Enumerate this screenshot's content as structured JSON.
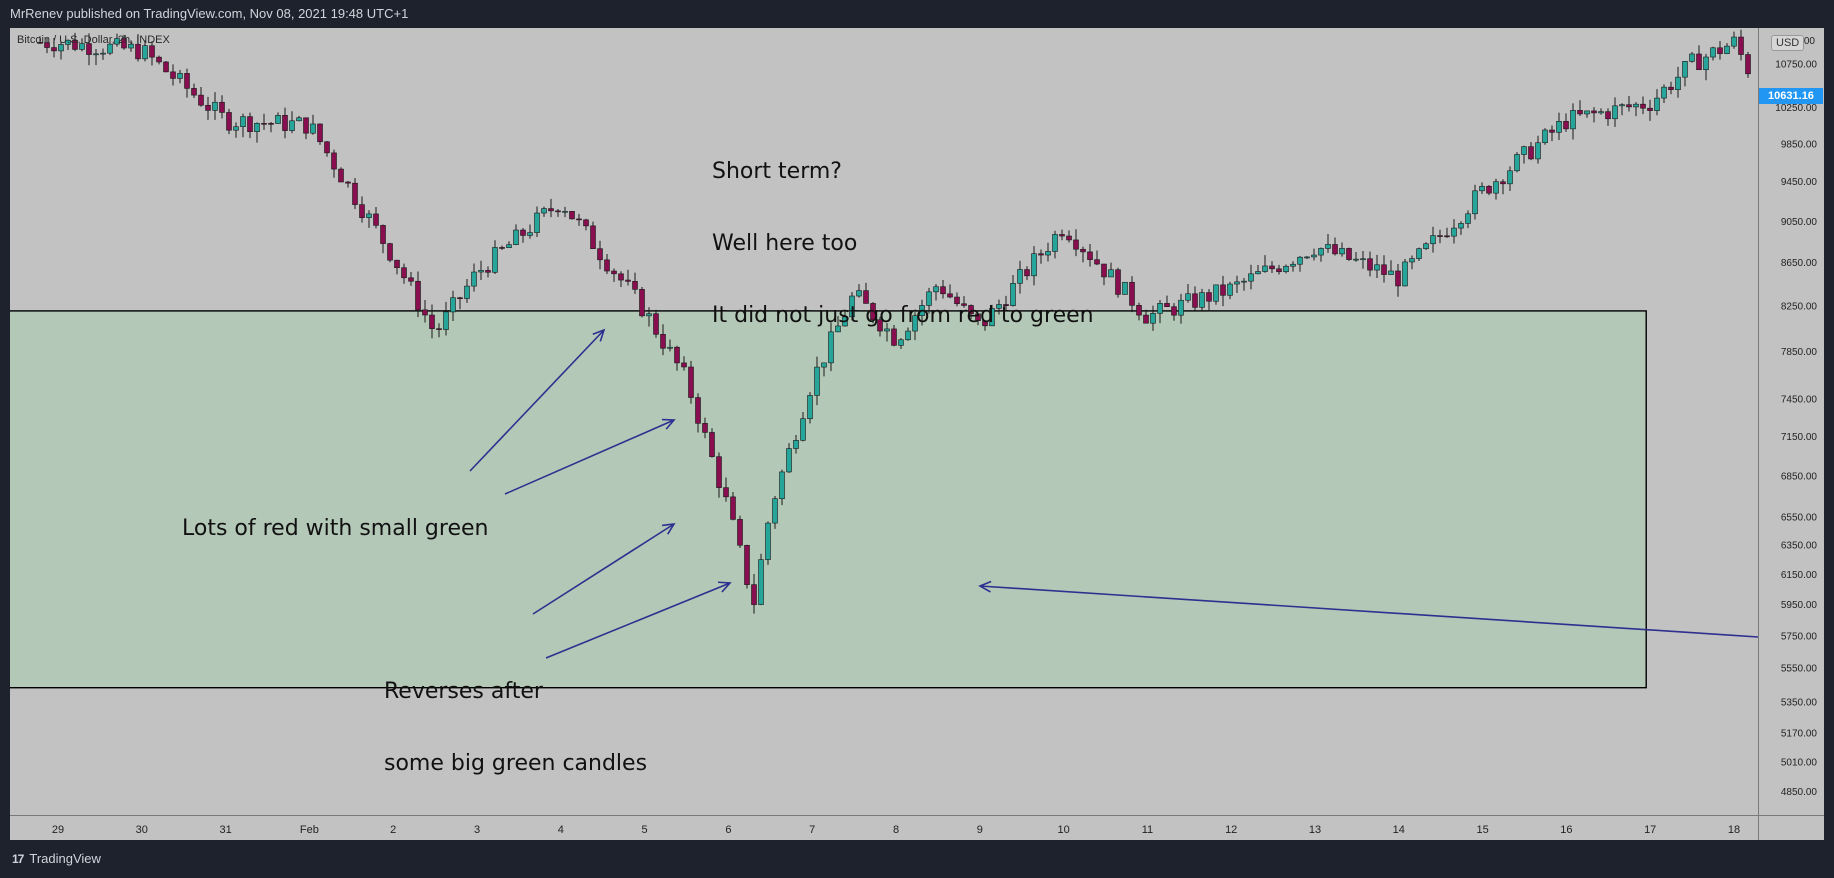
{
  "header": {
    "publish_line": "MrRenev published on TradingView.com, Nov 08, 2021 19:48 UTC+1"
  },
  "footer": {
    "brand": "TradingView",
    "logo_mark": "17"
  },
  "chart_data": {
    "type": "candlestick",
    "series_label": "Bitcoin / U.S. Dollar, 2h, INDEX",
    "currency_button": "USD",
    "last_price_label": "10631.16",
    "y_axis": {
      "scale": "log",
      "ylim": [
        4750,
        11150
      ],
      "tick_labels": [
        "10750.00",
        "10250.00",
        "9850.00",
        "9450.00",
        "9050.00",
        "8650.00",
        "8250.00",
        "7850.00",
        "7450.00",
        "7150.00",
        "6850.00",
        "6550.00",
        "6350.00",
        "6150.00",
        "5950.00",
        "5750.00",
        "5550.00",
        "5350.00",
        "5170.00",
        "5010.00",
        "4850.00"
      ],
      "top_partial_label": "11150.00"
    },
    "x_axis": {
      "tick_labels": [
        "29",
        "30",
        "31",
        "Feb",
        "2",
        "3",
        "4",
        "5",
        "6",
        "7",
        "8",
        "9",
        "10",
        "11",
        "12",
        "13",
        "14",
        "15",
        "16",
        "17",
        "18"
      ]
    },
    "candles_approx": {
      "description_points": [
        {
          "t": "29",
          "price": 11000
        },
        {
          "t": "30",
          "price": 10900
        },
        {
          "t": "31",
          "price": 10100
        },
        {
          "t": "Feb",
          "price": 10050
        },
        {
          "t": "2",
          "price": 8700
        },
        {
          "t": "2.5",
          "price": 8000
        },
        {
          "t": "3",
          "price": 8550
        },
        {
          "t": "4",
          "price": 9250
        },
        {
          "t": "5",
          "price": 8200
        },
        {
          "t": "5.5",
          "price": 7600
        },
        {
          "t": "6",
          "price": 6600
        },
        {
          "t": "6.3",
          "price": 5950
        },
        {
          "t": "6.5",
          "price": 6600
        },
        {
          "t": "7",
          "price": 7600
        },
        {
          "t": "7.5",
          "price": 8350
        },
        {
          "t": "8",
          "price": 7950
        },
        {
          "t": "8.5",
          "price": 8450
        },
        {
          "t": "9",
          "price": 8050
        },
        {
          "t": "10",
          "price": 9000
        },
        {
          "t": "11",
          "price": 8150
        },
        {
          "t": "12",
          "price": 8400
        },
        {
          "t": "13",
          "price": 8800
        },
        {
          "t": "14",
          "price": 8500
        },
        {
          "t": "15",
          "price": 9350
        },
        {
          "t": "16",
          "price": 10100
        },
        {
          "t": "17",
          "price": 10300
        },
        {
          "t": "17.5",
          "price": 10750
        },
        {
          "t": "18",
          "price": 11000
        },
        {
          "t": "18.2",
          "price": 10631.16
        }
      ]
    },
    "zone": {
      "price_top": 8200,
      "price_bottom": 5430,
      "t_end": "17"
    },
    "annotations": [
      {
        "lines": [
          "Short term?",
          "Well here too",
          "It did not just go from red to green"
        ]
      },
      {
        "lines": [
          "Lots of red with small green"
        ]
      },
      {
        "lines": [
          "Reverses after",
          "some big green candles"
        ]
      }
    ],
    "colors": {
      "up": "#26a69a",
      "down": "#880e4f",
      "zone_fill": "#b4c8b7",
      "arrow": "#2e2f8f",
      "background": "#c2c2c2"
    }
  }
}
